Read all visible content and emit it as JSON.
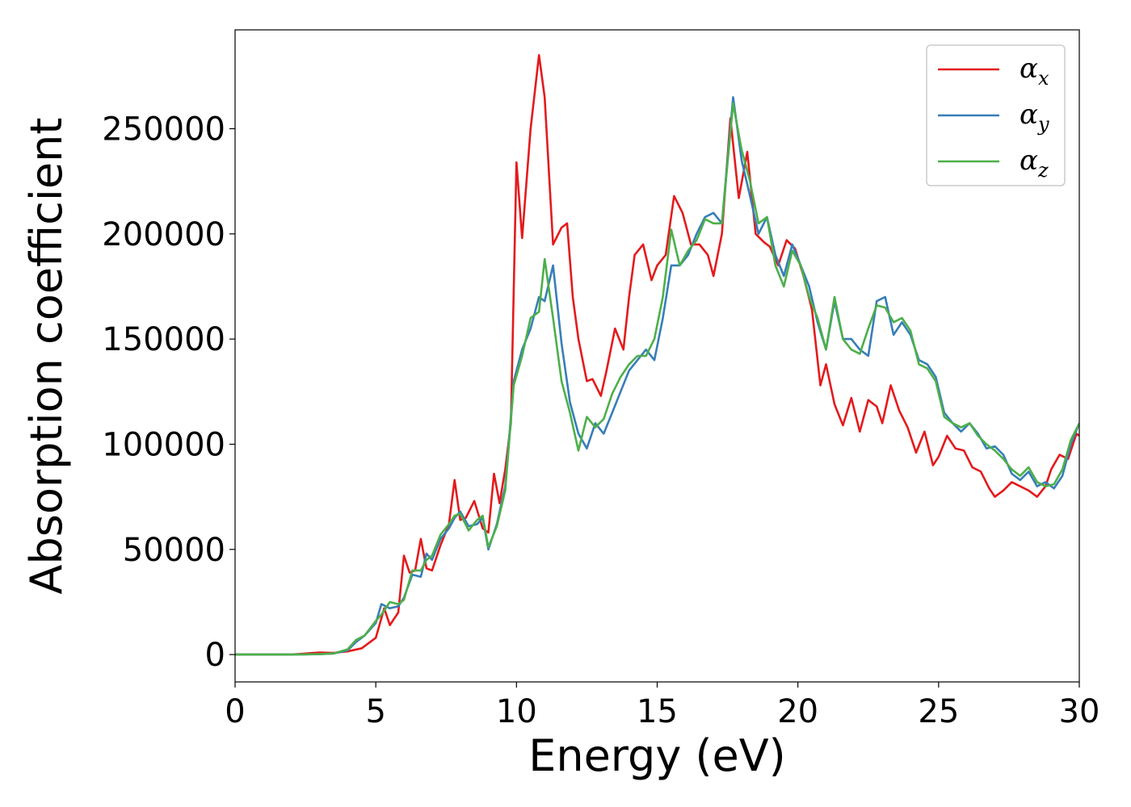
{
  "chart_data": {
    "type": "line",
    "title": "",
    "xlabel": "Energy (eV)",
    "ylabel": "Absorption coefficient",
    "xlim": [
      0,
      30
    ],
    "ylim": [
      -13000,
      297000
    ],
    "xticks": [
      0,
      5,
      10,
      15,
      20,
      25,
      30
    ],
    "yticks": [
      0,
      50000,
      100000,
      150000,
      200000,
      250000
    ],
    "grid": false,
    "legend_position": "top-right",
    "series": [
      {
        "name": "αx",
        "base": "α",
        "sub": "x",
        "color": "#e41a1c",
        "x": [
          0,
          1,
          2,
          3,
          3.5,
          4,
          4.5,
          5,
          5.3,
          5.5,
          5.8,
          6,
          6.2,
          6.4,
          6.6,
          6.8,
          7,
          7.3,
          7.6,
          7.8,
          8,
          8.2,
          8.5,
          8.8,
          9,
          9.2,
          9.4,
          9.6,
          9.8,
          10,
          10.2,
          10.5,
          10.8,
          11,
          11.3,
          11.6,
          11.8,
          12,
          12.2,
          12.5,
          12.7,
          13,
          13.2,
          13.5,
          13.8,
          14,
          14.2,
          14.5,
          14.8,
          15,
          15.3,
          15.6,
          15.9,
          16.2,
          16.5,
          16.8,
          17,
          17.3,
          17.6,
          17.9,
          18.2,
          18.5,
          18.8,
          19,
          19.3,
          19.6,
          19.9,
          20.2,
          20.5,
          20.8,
          21,
          21.3,
          21.6,
          21.9,
          22.2,
          22.5,
          22.8,
          23,
          23.3,
          23.6,
          23.9,
          24.2,
          24.5,
          24.8,
          25,
          25.3,
          25.6,
          25.9,
          26.2,
          26.5,
          26.8,
          27,
          27.3,
          27.6,
          27.9,
          28.2,
          28.5,
          28.8,
          29,
          29.3,
          29.6,
          29.9,
          30
        ],
        "y": [
          0,
          0,
          0,
          1000,
          800,
          1500,
          3000,
          8000,
          22000,
          14000,
          20000,
          47000,
          39000,
          40000,
          55000,
          41000,
          40000,
          52000,
          62000,
          83000,
          64000,
          65000,
          73000,
          60000,
          58000,
          86000,
          72000,
          88000,
          110000,
          234000,
          198000,
          250000,
          285000,
          265000,
          195000,
          203000,
          205000,
          170000,
          150000,
          130000,
          131000,
          123000,
          135000,
          155000,
          145000,
          170000,
          190000,
          195000,
          178000,
          185000,
          190000,
          218000,
          210000,
          195000,
          195000,
          190000,
          180000,
          200000,
          255000,
          217000,
          239000,
          200000,
          196000,
          194000,
          185000,
          197000,
          193000,
          180000,
          164000,
          128000,
          138000,
          119000,
          109000,
          122000,
          106000,
          121000,
          118000,
          110000,
          128000,
          116000,
          108000,
          96000,
          106000,
          90000,
          94000,
          104000,
          98000,
          97000,
          89000,
          87000,
          79000,
          75000,
          78000,
          82000,
          80000,
          78000,
          75000,
          80000,
          88000,
          95000,
          93000,
          105000,
          104000
        ]
      },
      {
        "name": "αy",
        "base": "α",
        "sub": "y",
        "color": "#377eb8",
        "x": [
          0,
          1,
          2,
          3,
          3.5,
          4,
          4.3,
          4.6,
          5,
          5.2,
          5.5,
          5.8,
          6,
          6.3,
          6.6,
          6.8,
          7,
          7.3,
          7.6,
          7.8,
          8,
          8.3,
          8.6,
          8.8,
          9,
          9.3,
          9.6,
          9.9,
          10.2,
          10.5,
          10.8,
          11,
          11.3,
          11.6,
          11.9,
          12.2,
          12.5,
          12.8,
          13.1,
          13.4,
          13.7,
          14,
          14.3,
          14.6,
          14.9,
          15.2,
          15.5,
          15.8,
          16.1,
          16.4,
          16.7,
          17,
          17.3,
          17.7,
          18,
          18.3,
          18.6,
          18.9,
          19.2,
          19.5,
          19.8,
          20.1,
          20.4,
          20.7,
          21,
          21.3,
          21.6,
          21.9,
          22.2,
          22.5,
          22.8,
          23.1,
          23.4,
          23.7,
          24,
          24.3,
          24.6,
          24.9,
          25.2,
          25.5,
          25.8,
          26.1,
          26.4,
          26.7,
          27,
          27.3,
          27.6,
          27.9,
          28.2,
          28.5,
          28.8,
          29.1,
          29.4,
          29.7,
          30
        ],
        "y": [
          0,
          0,
          0,
          200,
          500,
          2000,
          6000,
          9000,
          15000,
          24000,
          22000,
          23000,
          27000,
          38000,
          37000,
          48000,
          45000,
          55000,
          60000,
          65000,
          68000,
          61000,
          62000,
          65000,
          50000,
          62000,
          80000,
          130000,
          145000,
          155000,
          170000,
          168000,
          185000,
          148000,
          120000,
          105000,
          98000,
          110000,
          105000,
          115000,
          125000,
          135000,
          140000,
          145000,
          140000,
          160000,
          185000,
          185000,
          190000,
          200000,
          208000,
          210000,
          205000,
          265000,
          235000,
          218000,
          200000,
          208000,
          190000,
          180000,
          195000,
          185000,
          175000,
          158000,
          145000,
          168000,
          150000,
          150000,
          145000,
          142000,
          168000,
          170000,
          152000,
          158000,
          152000,
          140000,
          138000,
          132000,
          115000,
          110000,
          106000,
          110000,
          105000,
          98000,
          99000,
          95000,
          86000,
          83000,
          87000,
          80000,
          82000,
          79000,
          85000,
          100000,
          110000
        ]
      },
      {
        "name": "αz",
        "base": "α",
        "sub": "z",
        "color": "#4daf4a",
        "x": [
          0,
          1,
          2,
          3,
          3.5,
          4,
          4.3,
          4.6,
          5,
          5.2,
          5.5,
          5.8,
          6,
          6.3,
          6.6,
          6.8,
          7,
          7.3,
          7.6,
          7.8,
          8,
          8.3,
          8.6,
          8.8,
          9,
          9.3,
          9.6,
          9.9,
          10.2,
          10.5,
          10.8,
          11,
          11.3,
          11.6,
          11.9,
          12.2,
          12.5,
          12.8,
          13.1,
          13.4,
          13.7,
          14,
          14.3,
          14.6,
          14.9,
          15.2,
          15.5,
          15.8,
          16.1,
          16.4,
          16.7,
          17,
          17.3,
          17.7,
          18,
          18.3,
          18.6,
          18.9,
          19.2,
          19.5,
          19.8,
          20.1,
          20.4,
          20.7,
          21,
          21.3,
          21.6,
          21.9,
          22.2,
          22.5,
          22.8,
          23.1,
          23.4,
          23.7,
          24,
          24.3,
          24.6,
          24.9,
          25.2,
          25.5,
          25.8,
          26.1,
          26.4,
          26.7,
          27,
          27.3,
          27.6,
          27.9,
          28.2,
          28.5,
          28.8,
          29.1,
          29.4,
          29.7,
          30
        ],
        "y": [
          0,
          0,
          0,
          200,
          500,
          2500,
          7000,
          9000,
          16000,
          19000,
          25000,
          24000,
          26000,
          40000,
          40000,
          45000,
          47000,
          57000,
          62000,
          66000,
          67000,
          59000,
          64000,
          66000,
          51000,
          61000,
          78000,
          128000,
          142000,
          160000,
          163000,
          188000,
          160000,
          130000,
          115000,
          97000,
          113000,
          108000,
          112000,
          124000,
          132000,
          138000,
          142000,
          142000,
          150000,
          170000,
          202000,
          185000,
          192000,
          197000,
          207000,
          205000,
          205000,
          262000,
          240000,
          225000,
          205000,
          208000,
          185000,
          175000,
          192000,
          185000,
          170000,
          160000,
          145000,
          170000,
          150000,
          145000,
          143000,
          155000,
          166000,
          165000,
          158000,
          160000,
          154000,
          138000,
          136000,
          130000,
          113000,
          110000,
          108000,
          110000,
          104000,
          100000,
          97000,
          93000,
          88000,
          85000,
          89000,
          82000,
          80000,
          81000,
          88000,
          102000,
          110000
        ]
      }
    ]
  }
}
